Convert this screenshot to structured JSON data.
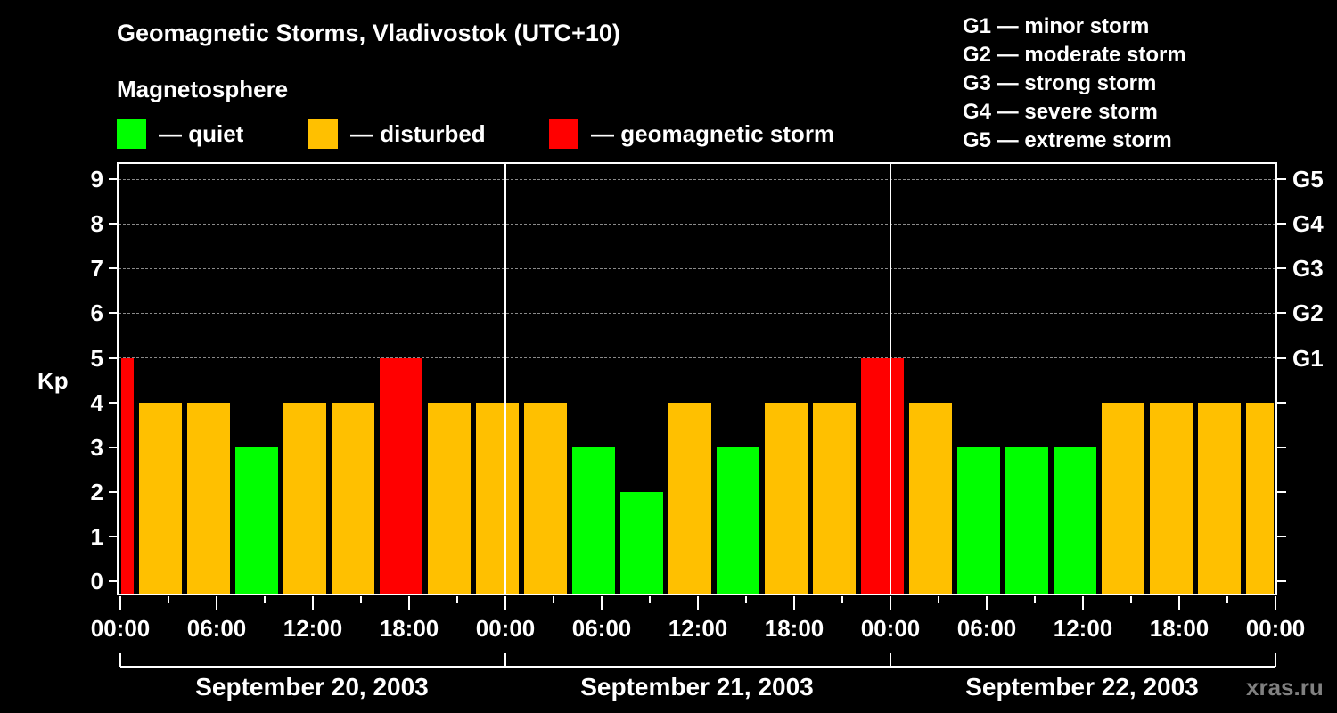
{
  "header": {
    "title": "Geomagnetic Storms, Vladivostok (UTC+10)",
    "subtitle": "Magnetosphere",
    "legend": [
      {
        "label": "— quiet",
        "color": "#00ff00"
      },
      {
        "label": "— disturbed",
        "color": "#ffc000"
      },
      {
        "label": "— geomagnetic storm",
        "color": "#ff0000"
      }
    ],
    "g_scale": [
      "G1 — minor storm",
      "G2 — moderate storm",
      "G3 — strong storm",
      "G4 — severe storm",
      "G5 — extreme storm"
    ]
  },
  "axes": {
    "ylabel": "Kp",
    "yticks": [
      "0",
      "1",
      "2",
      "3",
      "4",
      "5",
      "6",
      "7",
      "8",
      "9"
    ],
    "right_ticks": [
      "G1",
      "G2",
      "G3",
      "G4",
      "G5"
    ],
    "xticks": [
      "00:00",
      "06:00",
      "12:00",
      "18:00",
      "00:00",
      "06:00",
      "12:00",
      "18:00",
      "00:00",
      "06:00",
      "12:00",
      "18:00",
      "00:00"
    ],
    "days": [
      "September 20, 2003",
      "September 21, 2003",
      "September 22, 2003"
    ]
  },
  "watermark": "xras.ru",
  "chart_data": {
    "type": "bar",
    "title": "Geomagnetic Storms, Vladivostok (UTC+10)",
    "xlabel": "",
    "ylabel": "Kp",
    "ylim": [
      0,
      9
    ],
    "grid": true,
    "categories": [
      "Sep 20 00-01",
      "Sep 20 01-04",
      "Sep 20 04-07",
      "Sep 20 07-10",
      "Sep 20 10-13",
      "Sep 20 13-16",
      "Sep 20 16-19",
      "Sep 20 19-22",
      "Sep 20 22-01",
      "Sep 21 01-04",
      "Sep 21 04-07",
      "Sep 21 07-10",
      "Sep 21 10-13",
      "Sep 21 13-16",
      "Sep 21 16-19",
      "Sep 21 19-22",
      "Sep 21 22-01",
      "Sep 22 01-04",
      "Sep 22 04-07",
      "Sep 22 07-10",
      "Sep 22 10-13",
      "Sep 22 13-16",
      "Sep 22 16-19",
      "Sep 22 19-22",
      "Sep 22 22-24"
    ],
    "values": [
      5,
      4,
      4,
      3,
      4,
      4,
      5,
      4,
      4,
      4,
      3,
      2,
      4,
      3,
      4,
      4,
      5,
      4,
      3,
      3,
      3,
      4,
      4,
      4,
      4
    ],
    "status": [
      "storm",
      "disturbed",
      "disturbed",
      "quiet",
      "disturbed",
      "disturbed",
      "storm",
      "disturbed",
      "disturbed",
      "disturbed",
      "quiet",
      "quiet",
      "disturbed",
      "quiet",
      "disturbed",
      "disturbed",
      "storm",
      "disturbed",
      "quiet",
      "quiet",
      "quiet",
      "disturbed",
      "disturbed",
      "disturbed",
      "disturbed"
    ],
    "colors": {
      "quiet": "#00ff00",
      "disturbed": "#ffc000",
      "storm": "#ff0000"
    },
    "right_axis": {
      "G1": 5,
      "G2": 6,
      "G3": 7,
      "G4": 8,
      "G5": 9
    }
  }
}
